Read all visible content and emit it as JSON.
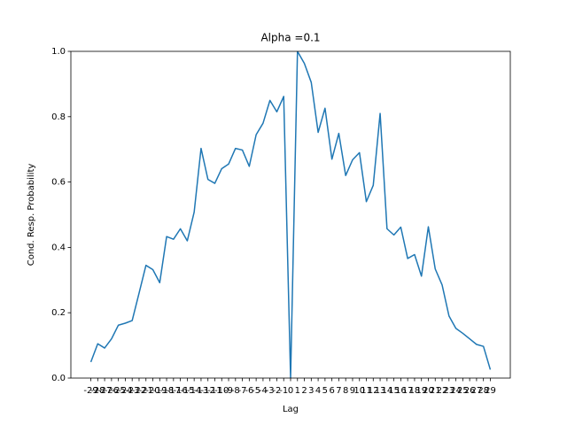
{
  "chart_data": {
    "type": "line",
    "title": "Alpha =0.1",
    "x_label": "Lag",
    "y_label": "Cond. Resp. Probability",
    "color": "#1f77b4",
    "x": [
      -29,
      -28,
      -27,
      -26,
      -25,
      -24,
      -23,
      -22,
      -21,
      -20,
      -19,
      -18,
      -17,
      -16,
      -15,
      -14,
      -13,
      -12,
      -11,
      -10,
      -9,
      -8,
      -7,
      -6,
      -5,
      -4,
      -3,
      -2,
      -1,
      0,
      1,
      2,
      3,
      4,
      5,
      6,
      7,
      8,
      9,
      10,
      11,
      12,
      13,
      14,
      15,
      16,
      17,
      18,
      19,
      20,
      21,
      22,
      23,
      24,
      25,
      26,
      27,
      28,
      29
    ],
    "values": [
      0.049,
      0.105,
      0.092,
      0.12,
      0.162,
      0.168,
      0.176,
      0.26,
      0.345,
      0.332,
      0.292,
      0.433,
      0.425,
      0.457,
      0.42,
      0.508,
      0.703,
      0.608,
      0.596,
      0.641,
      0.655,
      0.703,
      0.698,
      0.648,
      0.745,
      0.78,
      0.85,
      0.815,
      0.862,
      0.0,
      1.0,
      0.963,
      0.905,
      0.752,
      0.826,
      0.67,
      0.749,
      0.62,
      0.668,
      0.69,
      0.54,
      0.59,
      0.81,
      0.457,
      0.438,
      0.462,
      0.366,
      0.378,
      0.312,
      0.463,
      0.334,
      0.285,
      0.19,
      0.152,
      0.137,
      0.12,
      0.103,
      0.097,
      0.026
    ],
    "xlim": [
      -31.9,
      31.9
    ],
    "xticks": [
      -29,
      -28,
      -27,
      -26,
      -25,
      -24,
      -23,
      -22,
      -21,
      -20,
      -19,
      -18,
      -17,
      -16,
      -15,
      -14,
      -13,
      -12,
      -11,
      -10,
      -9,
      -8,
      -7,
      -6,
      -5,
      -4,
      -3,
      -2,
      -1,
      0,
      1,
      2,
      3,
      4,
      5,
      6,
      7,
      8,
      9,
      10,
      11,
      12,
      13,
      14,
      15,
      16,
      17,
      18,
      19,
      20,
      21,
      22,
      23,
      24,
      25,
      26,
      27,
      28,
      29
    ],
    "ylim": [
      0,
      1
    ],
    "yticks": [
      {
        "value": 0,
        "label": "0.0"
      },
      0.2,
      0.4,
      0.6,
      0.8,
      {
        "value": 1,
        "label": "1.0"
      }
    ],
    "grid": false
  }
}
